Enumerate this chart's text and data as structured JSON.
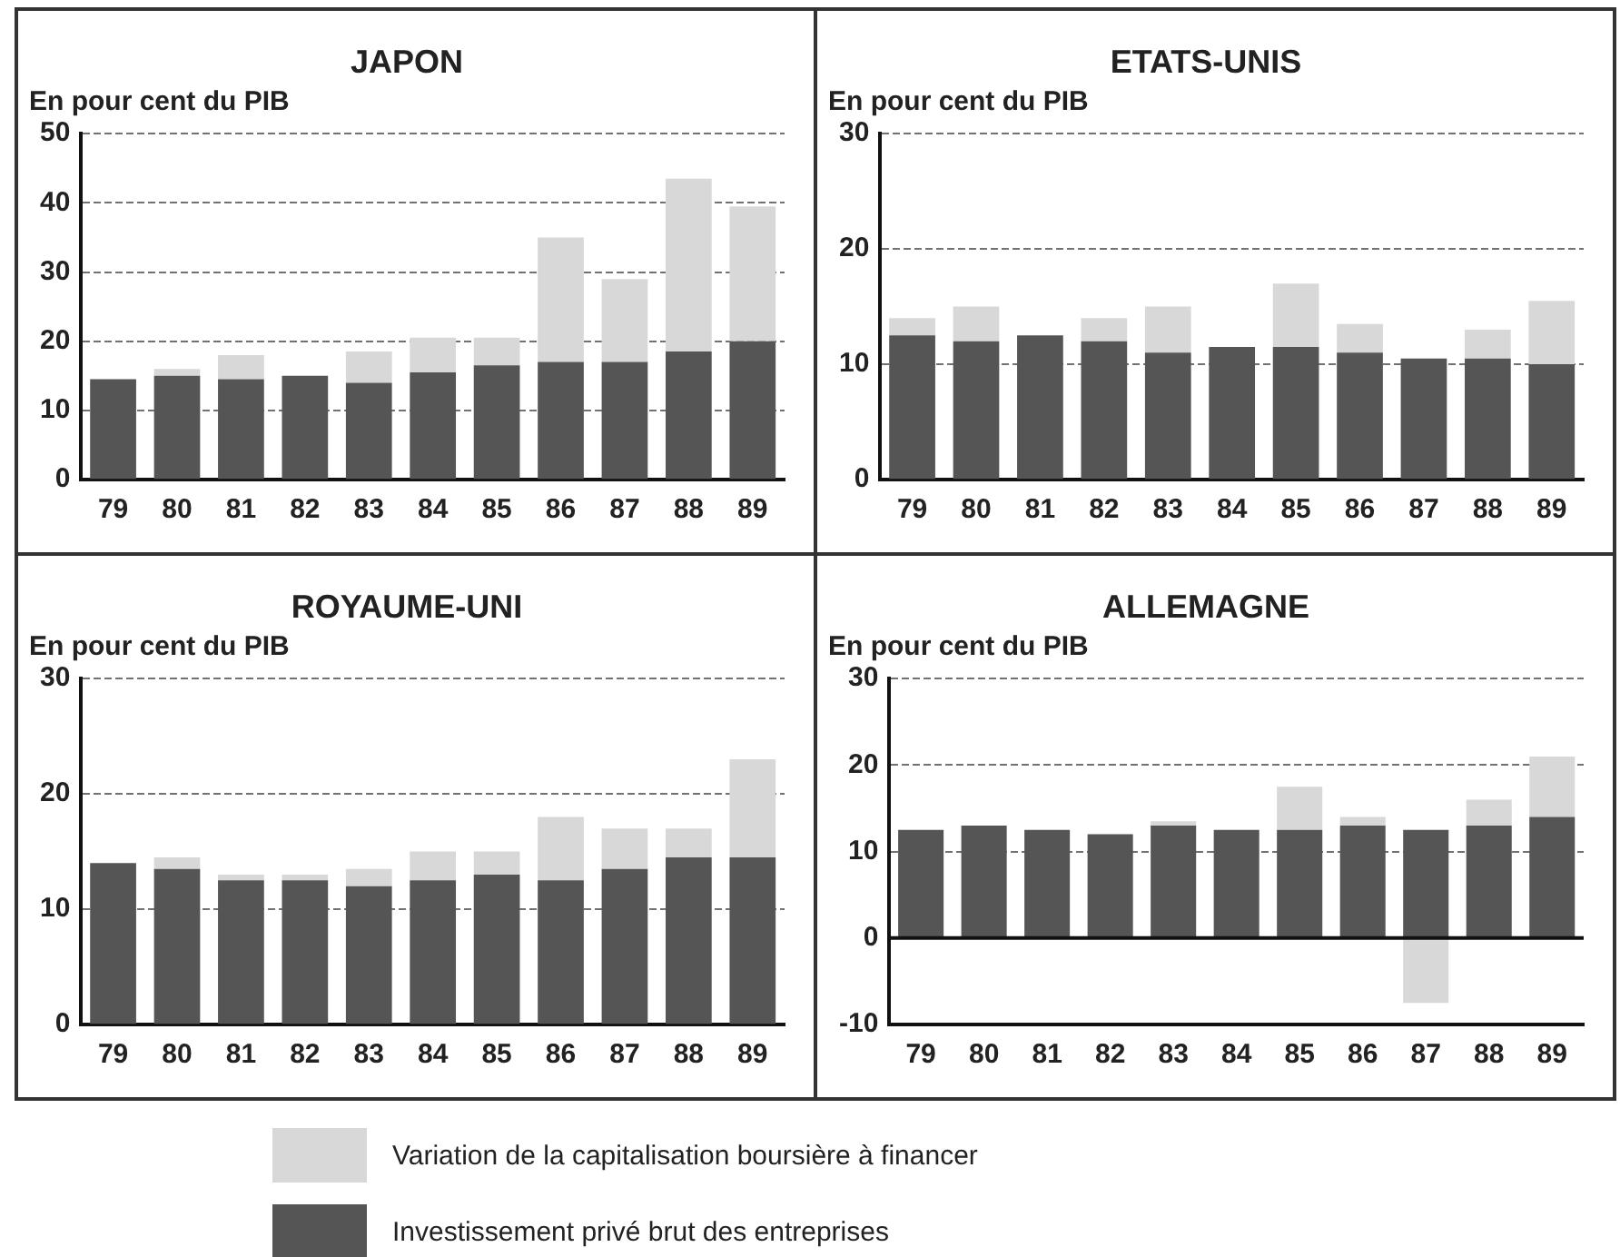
{
  "chart_data": [
    {
      "type": "bar",
      "title": "JAPON",
      "ylabel": "En pour cent du PIB",
      "stacked": true,
      "grid": "y",
      "legend": "bottom",
      "categories": [
        "79",
        "80",
        "81",
        "82",
        "83",
        "84",
        "85",
        "86",
        "87",
        "88",
        "89"
      ],
      "ylim": [
        0,
        50
      ],
      "yticks": [
        0,
        10,
        20,
        30,
        40,
        50
      ],
      "series": [
        {
          "name": "Investissement privé brut des entreprises",
          "color": "#555555",
          "values": [
            14.5,
            15,
            14.5,
            15,
            14,
            15.5,
            16.5,
            17,
            17,
            18.5,
            20
          ]
        },
        {
          "name": "Variation de la capitalisation boursière à financer",
          "color": "#d8d8d8",
          "values": [
            0,
            1,
            3.5,
            0,
            4.5,
            5,
            4,
            18,
            12,
            25,
            19.5
          ]
        }
      ]
    },
    {
      "type": "bar",
      "title": "ETATS-UNIS",
      "ylabel": "En pour cent du PIB",
      "stacked": true,
      "grid": "y",
      "categories": [
        "79",
        "80",
        "81",
        "82",
        "83",
        "84",
        "85",
        "86",
        "87",
        "88",
        "89"
      ],
      "ylim": [
        0,
        30
      ],
      "yticks": [
        0,
        10,
        20,
        30
      ],
      "series": [
        {
          "color": "#555555",
          "values": [
            12.5,
            12,
            12.5,
            12,
            11,
            11.5,
            11.5,
            11,
            10.5,
            10.5,
            10
          ]
        },
        {
          "color": "#d8d8d8",
          "values": [
            1.5,
            3,
            0,
            2,
            4,
            0,
            5.5,
            2.5,
            0,
            2.5,
            5.5
          ]
        }
      ]
    },
    {
      "type": "bar",
      "title": "ROYAUME-UNI",
      "ylabel": "En pour cent du PIB",
      "stacked": true,
      "grid": "y",
      "categories": [
        "79",
        "80",
        "81",
        "82",
        "83",
        "84",
        "85",
        "86",
        "87",
        "88",
        "89"
      ],
      "ylim": [
        0,
        30
      ],
      "yticks": [
        0,
        10,
        20,
        30
      ],
      "series": [
        {
          "color": "#555555",
          "values": [
            14,
            13.5,
            12.5,
            12.5,
            12,
            12.5,
            13,
            12.5,
            13.5,
            14.5,
            14.5
          ]
        },
        {
          "color": "#d8d8d8",
          "values": [
            0,
            1,
            0.5,
            0.5,
            1.5,
            2.5,
            2,
            5.5,
            3.5,
            2.5,
            8.5
          ]
        }
      ]
    },
    {
      "type": "bar",
      "title": "ALLEMAGNE",
      "ylabel": "En pour cent du PIB",
      "stacked": true,
      "grid": "y",
      "categories": [
        "79",
        "80",
        "81",
        "82",
        "83",
        "84",
        "85",
        "86",
        "87",
        "88",
        "89"
      ],
      "ylim": [
        -10,
        30
      ],
      "yticks": [
        -10,
        0,
        10,
        20,
        30
      ],
      "series": [
        {
          "color": "#555555",
          "values": [
            12.5,
            13,
            12.5,
            12,
            13,
            12.5,
            12.5,
            13,
            12.5,
            13,
            14
          ]
        },
        {
          "color": "#d8d8d8",
          "values": [
            0,
            0,
            0,
            0,
            0.5,
            0,
            5,
            1,
            -7.5,
            3,
            7
          ]
        }
      ]
    }
  ]
}
